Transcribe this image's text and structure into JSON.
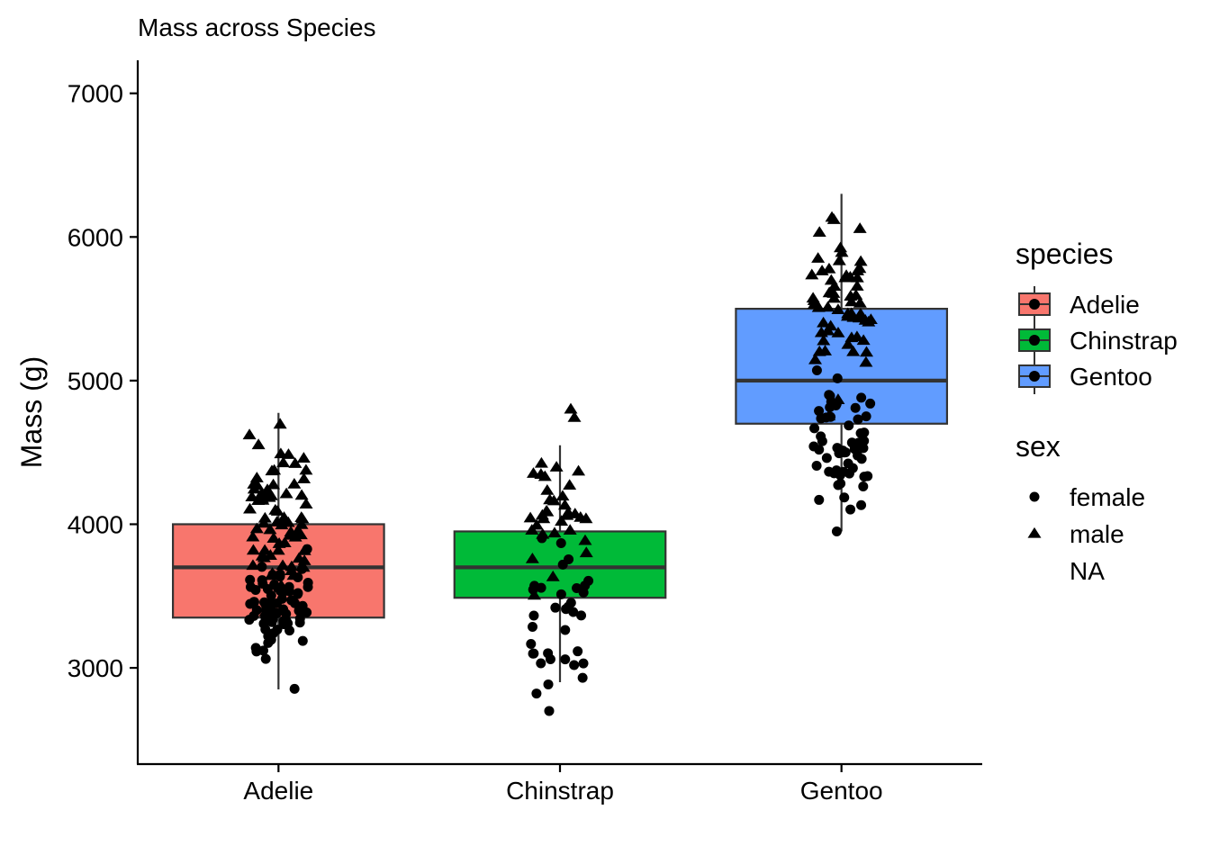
{
  "chart_data": {
    "type": "box",
    "title": "Mass across Species",
    "xlabel": "",
    "ylabel": "Mass (g)",
    "ylim": [
      2330,
      7230
    ],
    "yticks": [
      3000,
      4000,
      5000,
      6000,
      7000
    ],
    "categories": [
      "Adelie",
      "Chinstrap",
      "Gentoo"
    ],
    "boxes": [
      {
        "name": "Adelie",
        "color": "#F8766D",
        "min": 2850,
        "q1": 3350,
        "median": 3700,
        "q3": 4000,
        "max": 4775
      },
      {
        "name": "Chinstrap",
        "color": "#00BA38",
        "min": 2900,
        "q1": 3488,
        "median": 3700,
        "q3": 3950,
        "max": 4550
      },
      {
        "name": "Gentoo",
        "color": "#619CFF",
        "min": 3950,
        "q1": 4700,
        "median": 5000,
        "q3": 5500,
        "max": 6300
      }
    ],
    "outliers": [
      {
        "category": "Chinstrap",
        "value": 2700,
        "sex": "female"
      },
      {
        "category": "Chinstrap",
        "value": 4800,
        "sex": "male"
      }
    ],
    "jitter_summary": [
      {
        "category": "Adelie",
        "female_range": [
          2850,
          3900
        ],
        "male_range": [
          3300,
          4775
        ]
      },
      {
        "category": "Chinstrap",
        "female_range": [
          2700,
          4150
        ],
        "male_range": [
          3250,
          4800
        ]
      },
      {
        "category": "Gentoo",
        "female_range": [
          3950,
          5200
        ],
        "male_range": [
          4750,
          6300
        ]
      }
    ],
    "legend": {
      "position": "right",
      "species": {
        "title": "species",
        "entries": [
          "Adelie",
          "Chinstrap",
          "Gentoo"
        ]
      },
      "sex": {
        "title": "sex",
        "entries": [
          "female",
          "male",
          "NA"
        ]
      }
    },
    "grid": false
  }
}
